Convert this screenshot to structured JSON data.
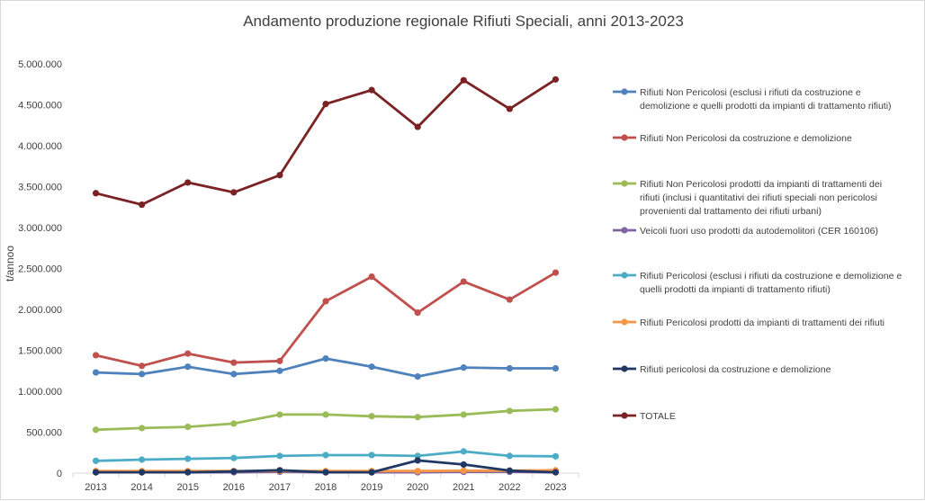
{
  "chart_data": {
    "type": "line",
    "title": "Andamento produzione regionale Rifiuti Speciali, anni 2013-2023",
    "xlabel": "",
    "ylabel": "t/annoo",
    "x": [
      "2013",
      "2014",
      "2015",
      "2016",
      "2017",
      "2018",
      "2019",
      "2020",
      "2021",
      "2022",
      "2023"
    ],
    "ylim": [
      0,
      5000000
    ],
    "yticks": [
      "0",
      "500.000",
      "1.000.000",
      "1.500.000",
      "2.000.000",
      "2.500.000",
      "3.000.000",
      "3.500.000",
      "4.000.000",
      "4.500.000",
      "5.000.000"
    ],
    "grid": false,
    "legend_position": "right",
    "series": [
      {
        "name": "Rifiuti Non Pericolosi (esclusi i rifiuti da costruzione e demolizione e quelli prodotti da impianti di trattamento rifiuti)",
        "legend_lines": [
          "Rifiuti Non Pericolosi (esclusi i rifiuti da costruzione e",
          "demolizione e quelli prodotti da impianti di trattamento rifiuti)"
        ],
        "color": "#4f81bd",
        "values": [
          1230000,
          1210000,
          1300000,
          1210000,
          1250000,
          1400000,
          1300000,
          1180000,
          1290000,
          1280000,
          1280000
        ]
      },
      {
        "name": "Rifiuti Non Pericolosi da costruzione e demolizione",
        "legend_lines": [
          "Rifiuti Non Pericolosi da costruzione e demolizione"
        ],
        "color": "#c0504d",
        "values": [
          1440000,
          1310000,
          1460000,
          1350000,
          1370000,
          2100000,
          2400000,
          1960000,
          2340000,
          2120000,
          2450000
        ]
      },
      {
        "name": "Rifiuti Non Pericolosi prodotti da impianti di trattamenti dei rifiuti (inclusi i quantitativi dei rifiuti speciali non pericolosi provenienti dal trattamento dei rifiuti urbani)",
        "legend_lines": [
          "Rifiuti Non Pericolosi prodotti da impianti di trattamenti dei",
          "rifiuti (inclusi i quantitativi dei rifiuti speciali non pericolosi",
          "provenienti dal trattamento dei rifiuti urbani)"
        ],
        "color": "#9bbb59",
        "values": [
          530000,
          550000,
          565000,
          605000,
          715000,
          715000,
          695000,
          685000,
          715000,
          760000,
          780000
        ]
      },
      {
        "name": "Veicoli fuori uso prodotti da autodemolitori (CER 160106)",
        "legend_lines": [
          "Veicoli fuori uso prodotti da autodemolitori (CER 160106)"
        ],
        "color": "#8064a2",
        "values": [
          10000,
          10000,
          10000,
          10000,
          15000,
          10000,
          10000,
          10000,
          15000,
          15000,
          10000
        ]
      },
      {
        "name": "Rifiuti Pericolosi (esclusi i rifiuti da costruzione e demolizione e quelli prodotti da impianti di trattamento rifiuti)",
        "legend_lines": [
          "Rifiuti Pericolosi (esclusi i rifiuti da costruzione e demolizione e",
          "quelli prodotti da impianti di trattamento rifiuti)"
        ],
        "color": "#4bacc6",
        "values": [
          150000,
          165000,
          175000,
          185000,
          210000,
          220000,
          220000,
          210000,
          265000,
          210000,
          205000
        ]
      },
      {
        "name": "Rifiuti Pericolosi prodotti da impianti di trattamenti dei rifiuti",
        "legend_lines": [
          "Rifiuti Pericolosi prodotti da impianti di trattamenti dei rifiuti"
        ],
        "color": "#f79646",
        "values": [
          25000,
          25000,
          25000,
          25000,
          25000,
          25000,
          25000,
          25000,
          30000,
          30000,
          35000
        ]
      },
      {
        "name": "Rifiuti pericolosi da costruzione e demolizione",
        "legend_lines": [
          "Rifiuti pericolosi da costruzione e demolizione"
        ],
        "color": "#1f3864",
        "values": [
          10000,
          10000,
          10000,
          20000,
          35000,
          10000,
          10000,
          155000,
          105000,
          30000,
          10000
        ]
      },
      {
        "name": "TOTALE",
        "legend_lines": [
          "TOTALE"
        ],
        "color": "#7b2324",
        "values": [
          3420000,
          3280000,
          3550000,
          3430000,
          3640000,
          4510000,
          4680000,
          4230000,
          4800000,
          4450000,
          4810000
        ]
      }
    ]
  }
}
